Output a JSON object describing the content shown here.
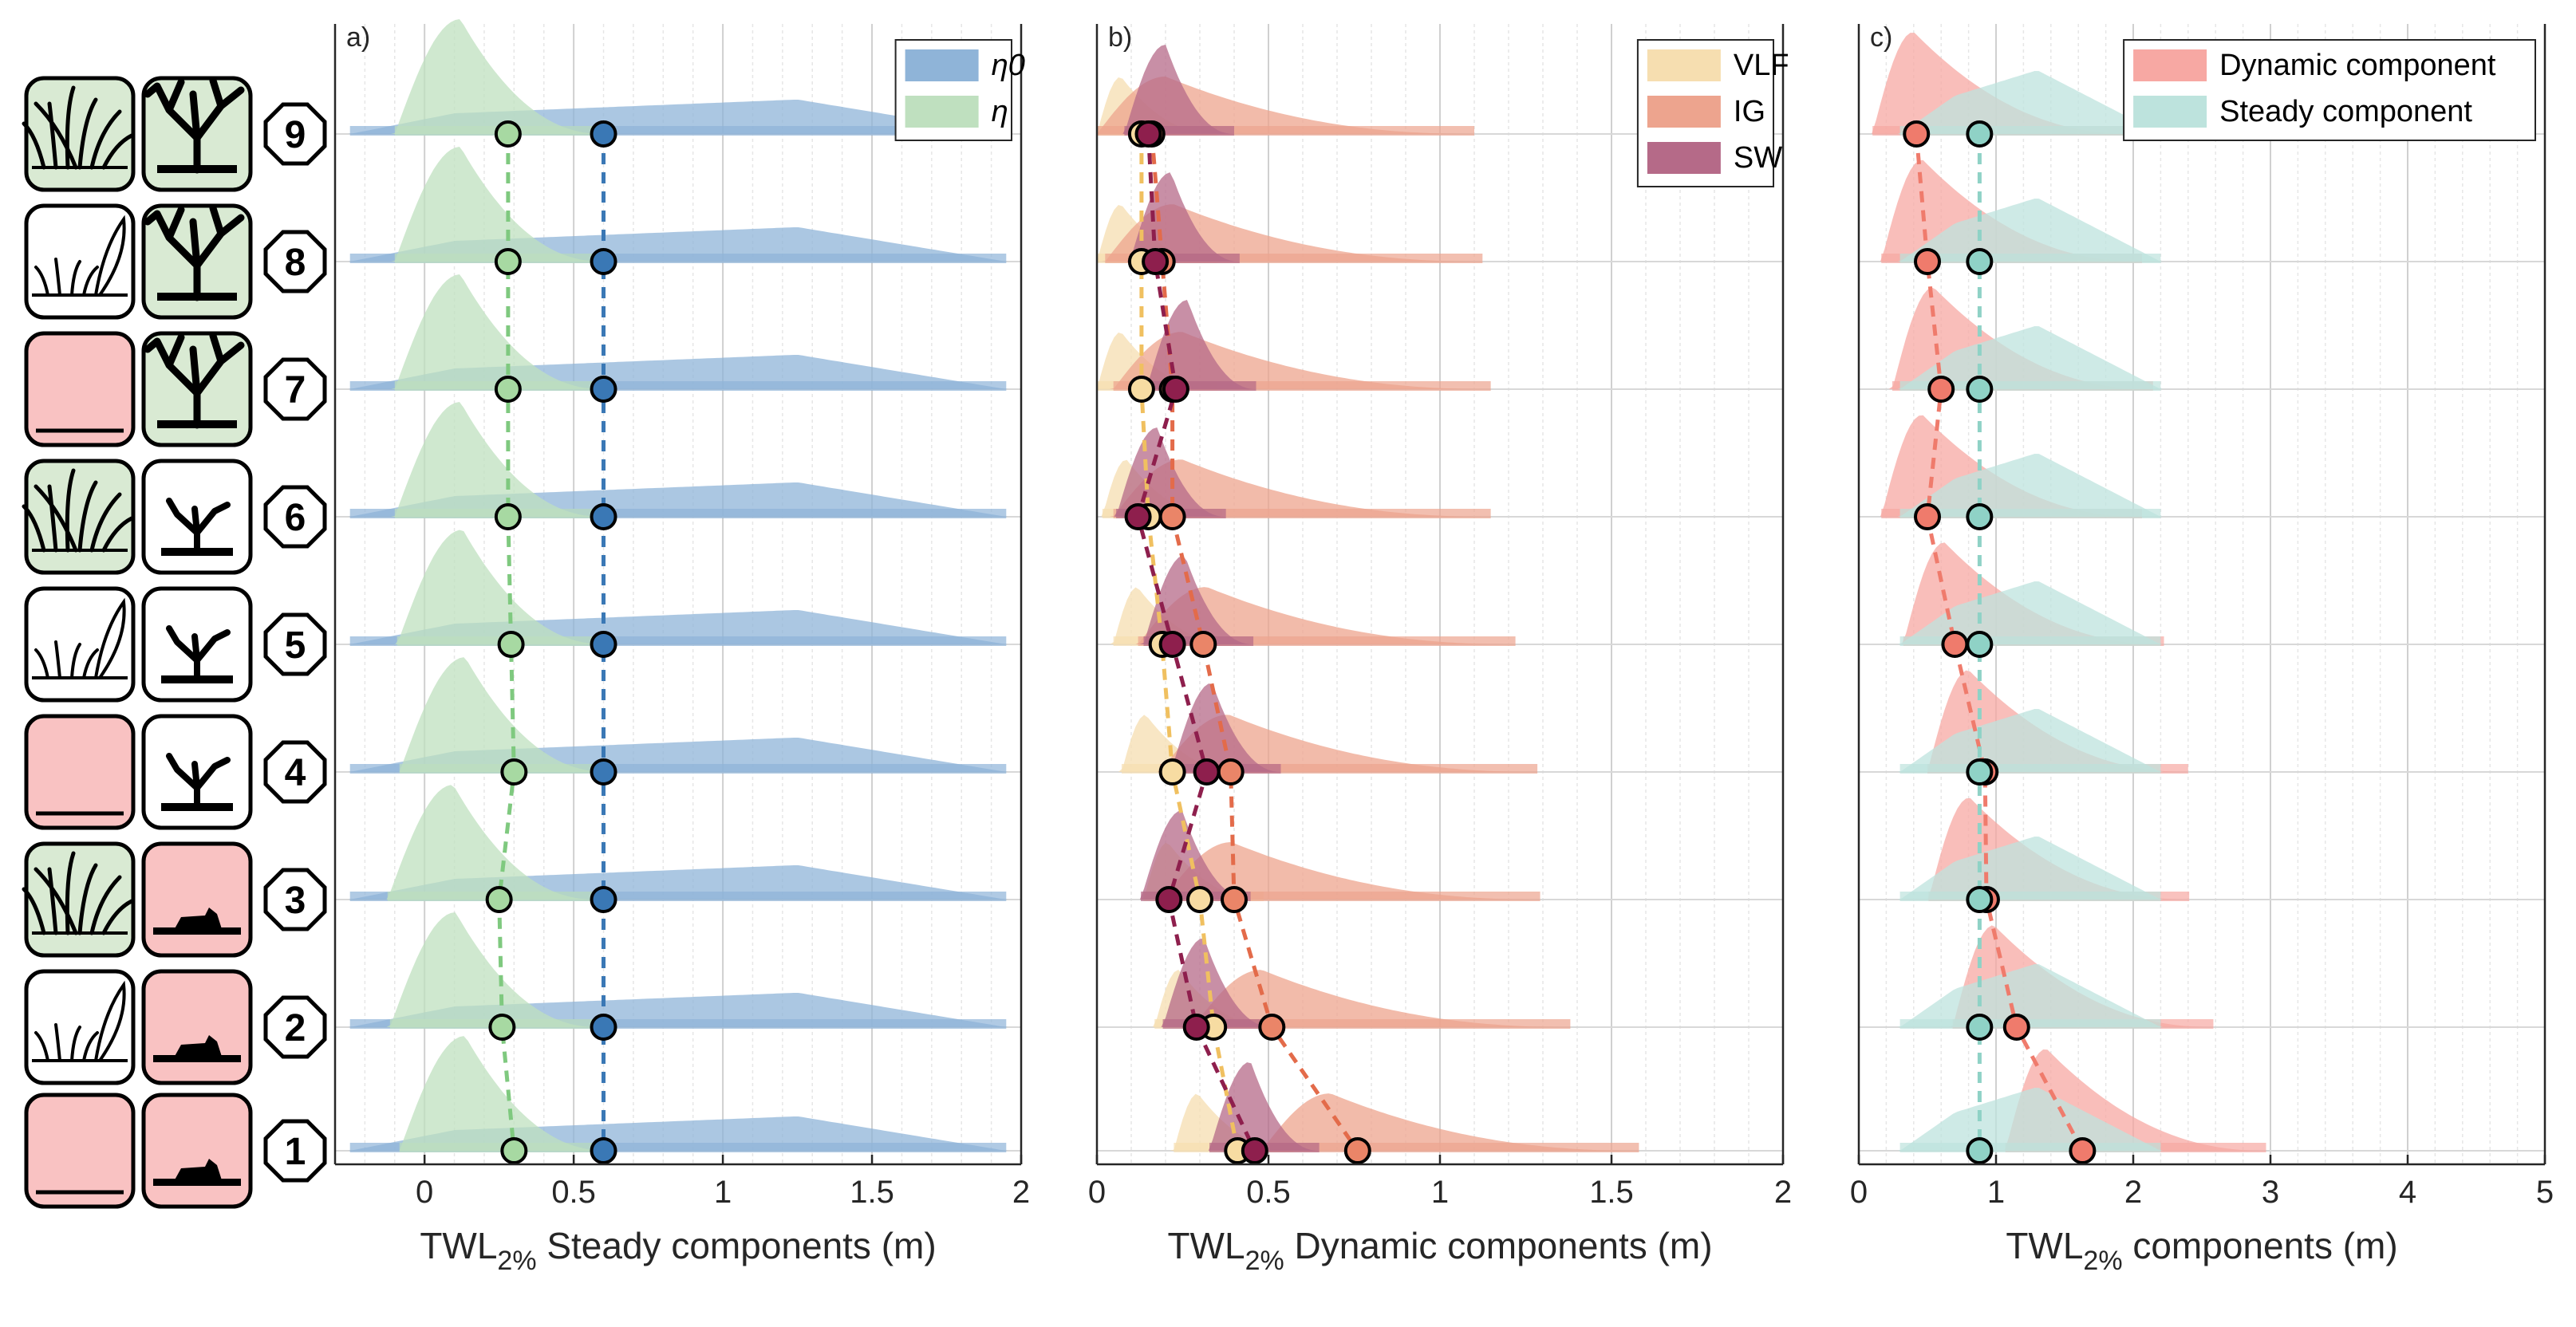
{
  "scenarios": {
    "rows": [
      {
        "number": "9",
        "dune": "vegetated",
        "reef": "healthy"
      },
      {
        "number": "8",
        "dune": "sparse",
        "reef": "healthy"
      },
      {
        "number": "7",
        "dune": "bare",
        "reef": "healthy"
      },
      {
        "number": "6",
        "dune": "vegetated",
        "reef": "degraded"
      },
      {
        "number": "5",
        "dune": "sparse",
        "reef": "degraded"
      },
      {
        "number": "4",
        "dune": "bare",
        "reef": "degraded"
      },
      {
        "number": "3",
        "dune": "vegetated",
        "reef": "dead"
      },
      {
        "number": "2",
        "dune": "sparse",
        "reef": "dead"
      },
      {
        "number": "1",
        "dune": "bare",
        "reef": "dead"
      }
    ],
    "colors": {
      "good_fill": "#d9ead3",
      "bad_fill": "#f9c2c2",
      "outline": "#000000"
    }
  },
  "chart_data": [
    {
      "type": "ridgeline",
      "panel_label": "a)",
      "xlabel_prefix": "TWL",
      "xlabel_subscript": "2%",
      "xlabel_suffix": " Steady components (m)",
      "xlim": [
        -0.3,
        2
      ],
      "xticks": [
        0,
        0.5,
        1,
        1.5,
        2
      ],
      "xtick_labels": [
        "0",
        "0.5",
        "1",
        "1.5",
        "2"
      ],
      "rows": [
        "9",
        "8",
        "7",
        "6",
        "5",
        "4",
        "3",
        "2",
        "1"
      ],
      "legend": {
        "position": "top-right",
        "entries": [
          "η0",
          "η"
        ]
      },
      "series": [
        {
          "name": "η0",
          "color": "#8fb4d8",
          "marker_color": "#3a78b5",
          "line_color": "#3a78b5",
          "medians": [
            0.6,
            0.6,
            0.6,
            0.6,
            0.6,
            0.6,
            0.6,
            0.6,
            0.6
          ],
          "density": {
            "type": "plateau",
            "start": -0.25,
            "rise_end": 0.1,
            "peak": 1.25,
            "end": 1.95,
            "height": 0.27
          }
        },
        {
          "name": "η",
          "color": "#bfe0bf",
          "marker_color": "#a7d9a2",
          "line_color": "#7fc97f",
          "medians": [
            0.28,
            0.28,
            0.28,
            0.28,
            0.29,
            0.3,
            0.25,
            0.26,
            0.3
          ],
          "density": {
            "type": "peaked",
            "start": -0.1,
            "peak": 0.12,
            "end": 0.6,
            "height": 0.9
          }
        }
      ]
    },
    {
      "type": "ridgeline",
      "panel_label": "b)",
      "xlabel_prefix": "TWL",
      "xlabel_subscript": "2%",
      "xlabel_suffix": " Dynamic components (m)",
      "xlim": [
        0,
        2
      ],
      "xticks": [
        0,
        0.5,
        1,
        1.5,
        2
      ],
      "xtick_labels": [
        "0",
        "0.5",
        "1",
        "1.5",
        "2"
      ],
      "rows": [
        "9",
        "8",
        "7",
        "6",
        "5",
        "4",
        "3",
        "2",
        "1"
      ],
      "legend": {
        "position": "top-right",
        "entries": [
          "VLF",
          "IG",
          "SW"
        ]
      },
      "series": [
        {
          "name": "VLF",
          "color": "#f6deb0",
          "marker_color": "#f7dca2",
          "line_color": "#f0c060",
          "medians": [
            0.13,
            0.13,
            0.13,
            0.15,
            0.19,
            0.22,
            0.3,
            0.34,
            0.41
          ],
          "density": {
            "type": "peaked",
            "start": 0.0,
            "peak": 0.07,
            "end": 0.35,
            "height": 0.45
          }
        },
        {
          "name": "IG",
          "color": "#eda48e",
          "marker_color": "#ea8568",
          "line_color": "#e36b4a",
          "medians": [
            0.16,
            0.19,
            0.22,
            0.22,
            0.31,
            0.39,
            0.4,
            0.51,
            0.76
          ],
          "density": {
            "type": "peaked",
            "start": 0.0,
            "peak": 0.2,
            "end": 1.1,
            "height": 0.45
          }
        },
        {
          "name": "SW",
          "color": "#b56a88",
          "marker_color": "#8e1f4d",
          "line_color": "#8e1f4d",
          "medians": [
            0.15,
            0.17,
            0.23,
            0.12,
            0.22,
            0.32,
            0.21,
            0.29,
            0.46
          ],
          "density": {
            "type": "peaked",
            "start": 0.08,
            "peak": 0.2,
            "end": 0.4,
            "height": 0.7
          }
        }
      ]
    },
    {
      "type": "ridgeline",
      "panel_label": "c)",
      "xlabel_prefix": "TWL",
      "xlabel_subscript": "2%",
      "xlabel_suffix": " components (m)",
      "xlim": [
        0,
        5
      ],
      "xticks": [
        0,
        1,
        2,
        3,
        4,
        5
      ],
      "xtick_labels": [
        "0",
        "1",
        "2",
        "3",
        "4",
        "5"
      ],
      "rows": [
        "9",
        "8",
        "7",
        "6",
        "5",
        "4",
        "3",
        "2",
        "1"
      ],
      "legend": {
        "position": "top-right",
        "entries": [
          "Dynamic component",
          "Steady component"
        ]
      },
      "series": [
        {
          "name": "Dynamic component",
          "color": "#f7a8a3",
          "marker_color": "#ef7b6c",
          "line_color": "#ef7b6c",
          "medians": [
            0.42,
            0.5,
            0.6,
            0.5,
            0.7,
            0.92,
            0.93,
            1.15,
            1.63
          ],
          "density": {
            "type": "peaked",
            "start": 0.1,
            "peak": 0.4,
            "end": 2.0,
            "height": 0.8
          }
        },
        {
          "name": "Steady component",
          "color": "#bde3dd",
          "marker_color": "#8fd2c6",
          "line_color": "#8fd2c6",
          "medians": [
            0.88,
            0.88,
            0.88,
            0.88,
            0.88,
            0.88,
            0.88,
            0.88,
            0.88
          ],
          "density": {
            "type": "plateau",
            "start": 0.3,
            "rise_end": 0.7,
            "peak": 1.3,
            "end": 2.2,
            "height": 0.5
          }
        }
      ]
    }
  ]
}
